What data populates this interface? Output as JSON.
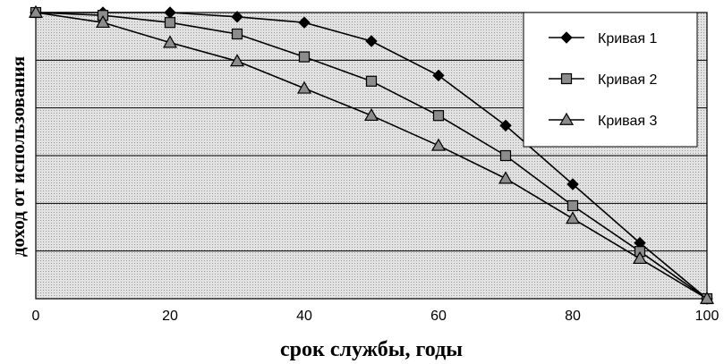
{
  "chart_data": {
    "type": "line",
    "xlabel": "срок службы, годы",
    "ylabel": "доход от использования",
    "x": [
      0,
      10,
      20,
      30,
      40,
      50,
      60,
      70,
      80,
      90,
      100
    ],
    "xlim": [
      0,
      100
    ],
    "ylim": [
      0,
      1
    ],
    "x_ticks": [
      "0",
      "20",
      "40",
      "60",
      "80",
      "100"
    ],
    "y_tick_labels": false,
    "grid": "horizontal",
    "plot_background": "#d9d9d9",
    "legend_position": "top-right",
    "series": [
      {
        "name": "Кривая 1",
        "marker": "diamond",
        "color": "#000000",
        "values": [
          1.0,
          1.0,
          1.0,
          0.985,
          0.965,
          0.9,
          0.78,
          0.605,
          0.4,
          0.195,
          0.0
        ]
      },
      {
        "name": "Кривая 2",
        "marker": "square",
        "color": "#000000",
        "values": [
          1.0,
          0.99,
          0.965,
          0.925,
          0.845,
          0.76,
          0.64,
          0.5,
          0.325,
          0.165,
          0.0
        ]
      },
      {
        "name": "Кривая 3",
        "marker": "triangle",
        "color": "#000000",
        "values": [
          1.0,
          0.965,
          0.895,
          0.83,
          0.735,
          0.64,
          0.535,
          0.42,
          0.28,
          0.14,
          0.0
        ]
      }
    ]
  }
}
